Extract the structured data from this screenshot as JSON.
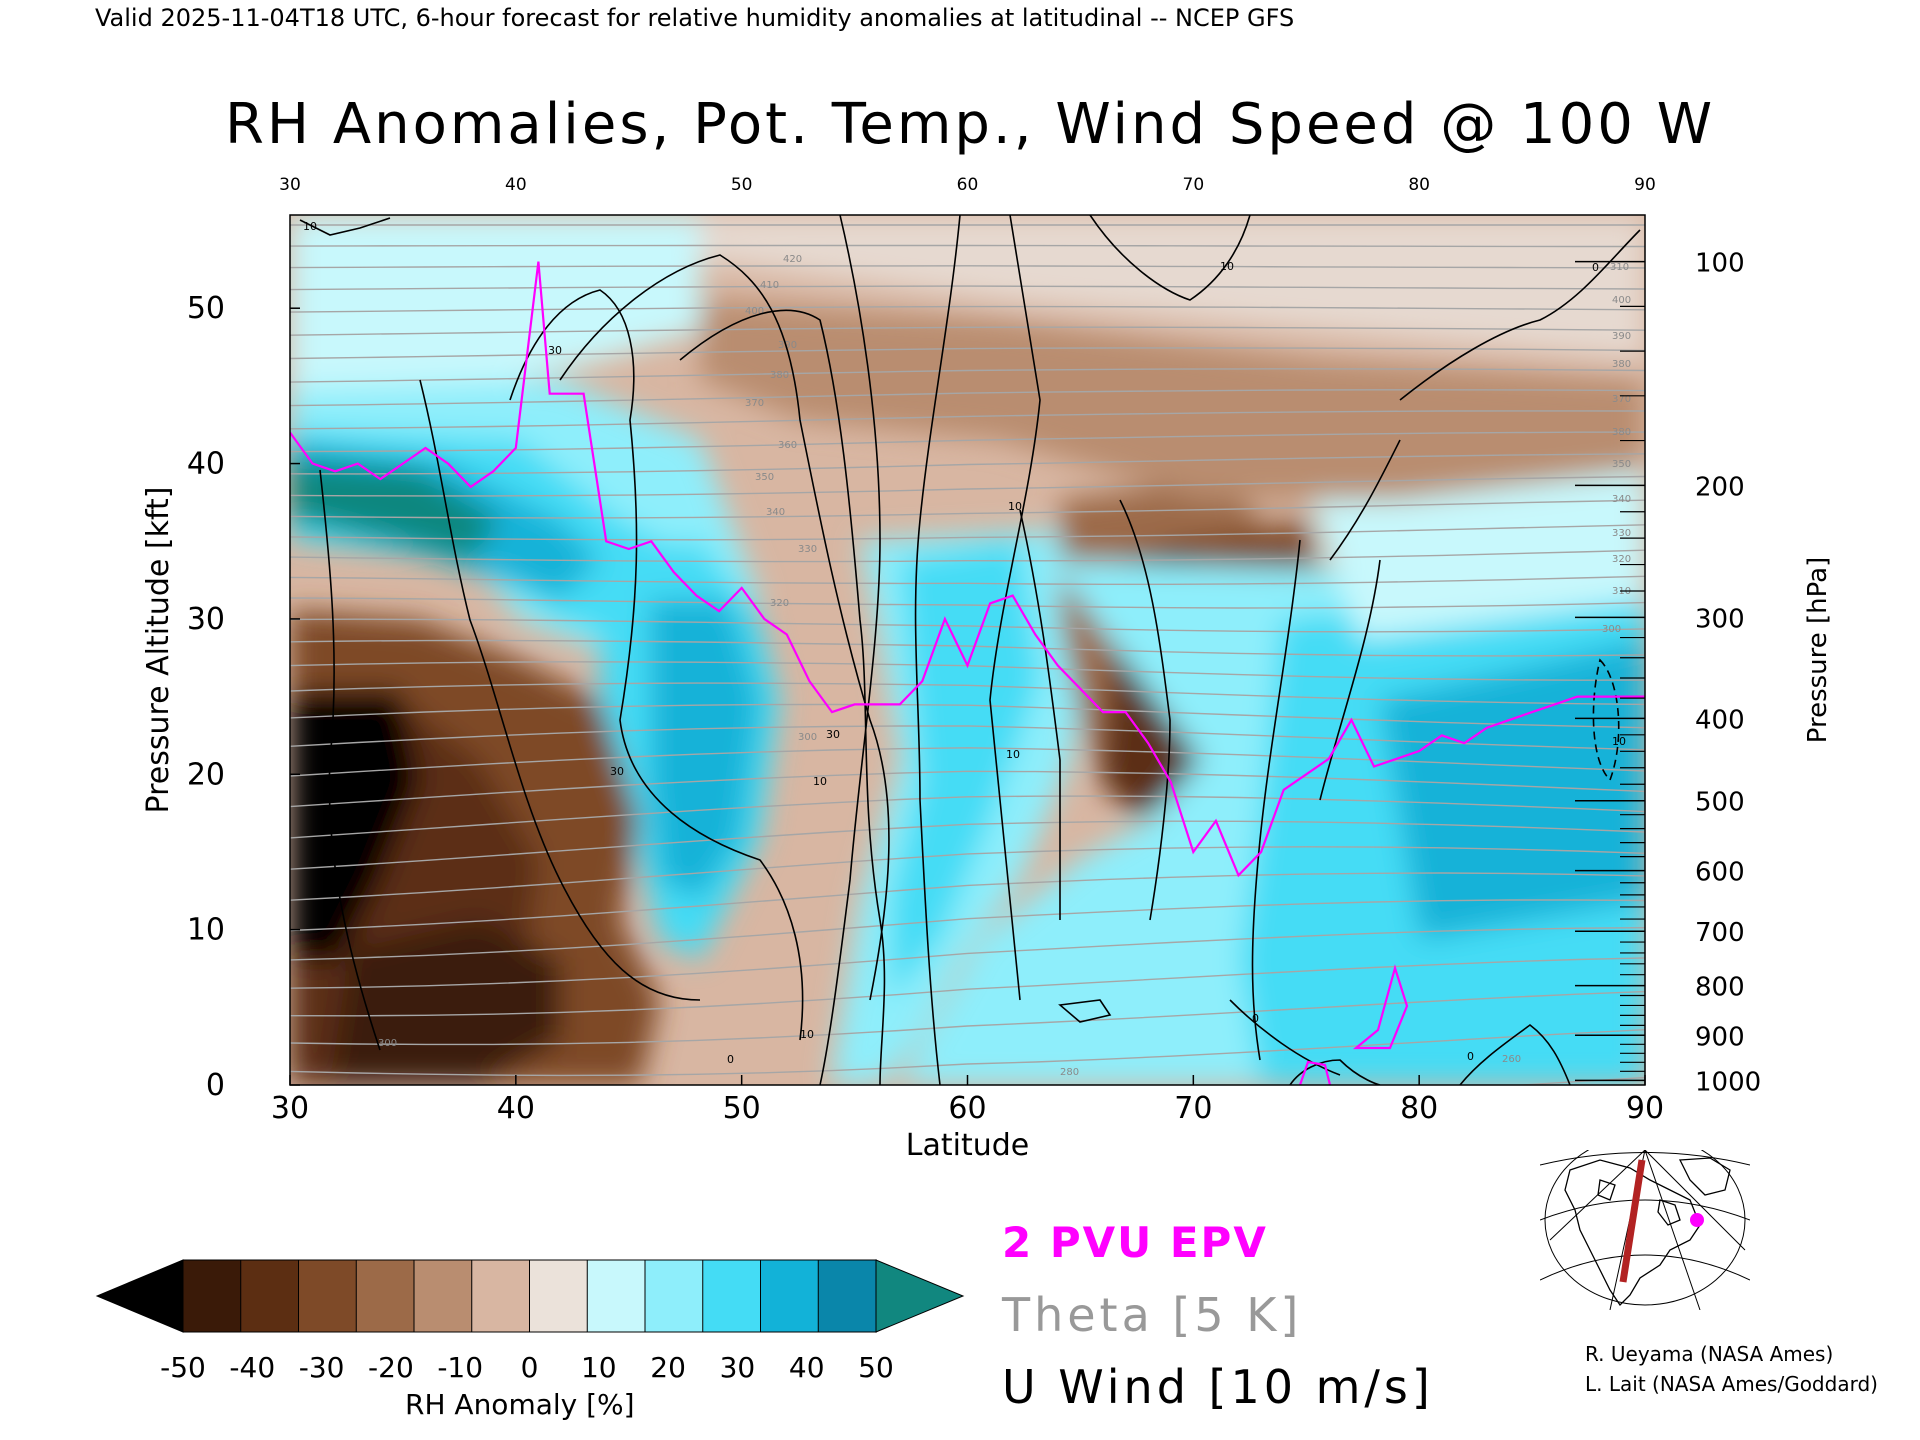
{
  "header": {
    "valid_line": "Valid 2025-11-04T18 UTC, 6-hour forecast for relative humidity anomalies at latitudinal -- NCEP GFS",
    "title": "RH Anomalies, Pot. Temp., Wind Speed @ 100 W"
  },
  "chart_data": {
    "type": "heatmap",
    "title": "RH Anomalies, Pot. Temp., Wind Speed @ 100 W",
    "xlabel": "Latitude",
    "ylabel": "Pressure Altitude [kft]",
    "ylabel_right": "Pressure [hPa]",
    "xlim": [
      30,
      90
    ],
    "ylim": [
      0,
      56
    ],
    "x_ticks": [
      "30",
      "40",
      "50",
      "60",
      "70",
      "80",
      "90"
    ],
    "y_ticks": [
      "0",
      "10",
      "20",
      "30",
      "40",
      "50"
    ],
    "pressure_ticks": [
      {
        "label": "100",
        "kft": 53.0
      },
      {
        "label": "200",
        "kft": 38.6
      },
      {
        "label": "300",
        "kft": 30.1
      },
      {
        "label": "400",
        "kft": 23.6
      },
      {
        "label": "500",
        "kft": 18.3
      },
      {
        "label": "600",
        "kft": 13.8
      },
      {
        "label": "700",
        "kft": 9.9
      },
      {
        "label": "800",
        "kft": 6.4
      },
      {
        "label": "900",
        "kft": 3.2
      },
      {
        "label": "1000",
        "kft": 0.3
      }
    ],
    "colorbar": {
      "label": "RH Anomaly [%]",
      "ticks": [
        "-50",
        "-40",
        "-30",
        "-20",
        "-10",
        "0",
        "10",
        "20",
        "30",
        "40",
        "50"
      ],
      "colors": [
        "#3a1a08",
        "#5c2e12",
        "#7e4a28",
        "#9c6a48",
        "#b98d70",
        "#d8b6a2",
        "#ebe2da",
        "#c8f8fc",
        "#8eeefb",
        "#44dcf5",
        "#12b2d8",
        "#0a86aa"
      ],
      "under_color": "#000000",
      "over_color": "#11877f"
    },
    "legend": [
      {
        "label": "2 PVU EPV",
        "color": "#ff00ff"
      },
      {
        "label": "Theta [5 K]",
        "color": "#999999"
      },
      {
        "label": "U Wind [10 m/s]",
        "color": "#000000"
      }
    ],
    "series": [
      {
        "name": "2 PVU EPV",
        "color": "#ff00ff",
        "x": [
          30,
          31,
          32,
          33,
          34,
          35,
          36,
          37,
          38,
          39,
          40,
          41,
          41.5,
          42,
          43,
          44,
          45,
          46,
          47,
          48,
          49,
          50,
          51,
          52,
          53,
          54,
          55,
          56,
          57,
          58,
          59,
          60,
          61,
          62,
          63,
          64,
          65,
          66,
          67,
          68,
          69,
          70,
          71,
          72,
          73,
          74,
          75,
          76,
          77,
          78,
          79,
          80,
          81,
          82,
          83,
          84,
          85,
          86,
          87,
          88,
          89,
          90
        ],
        "y": [
          42,
          40,
          39.5,
          40,
          39,
          40,
          41,
          40,
          38.5,
          39.5,
          41,
          53,
          44.5,
          44.5,
          44.5,
          35,
          34.5,
          35,
          33,
          31.5,
          30.5,
          32,
          30,
          29,
          26,
          24,
          24.5,
          24.5,
          24.5,
          26,
          30,
          27,
          31,
          31.5,
          29,
          27,
          25.5,
          24,
          24,
          22,
          19.5,
          15,
          17,
          13.5,
          15,
          19,
          20,
          21,
          23.5,
          20.5,
          21,
          21.5,
          22.5,
          22,
          23,
          23.5,
          24,
          24.5,
          25,
          25,
          25,
          25
        ]
      }
    ],
    "annotations": [
      "10",
      "20",
      "30",
      "0",
      "300",
      "310",
      "320",
      "330",
      "340",
      "350",
      "360",
      "370",
      "380",
      "390",
      "400",
      "410",
      "420",
      "280",
      "260"
    ],
    "grid": false
  },
  "inset_map": {
    "marker_color": "#ff00ff",
    "line_color": "#b22222"
  },
  "credits": {
    "line1": "R. Ueyama (NASA Ames)",
    "line2": "L. Lait (NASA Ames/Goddard)"
  }
}
